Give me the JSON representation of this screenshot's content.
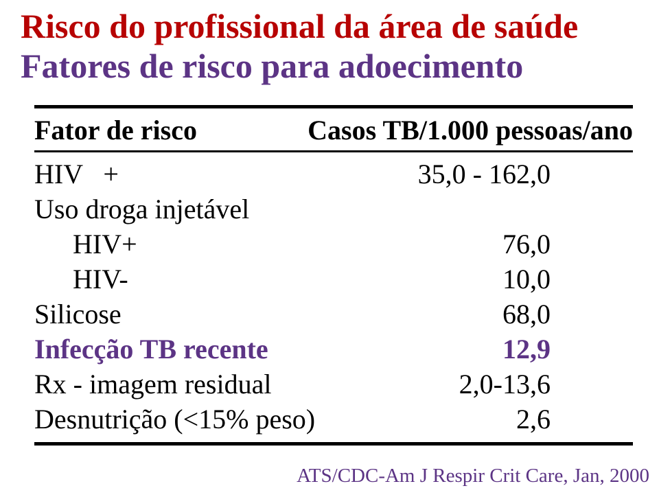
{
  "colors": {
    "heading": "#b70303",
    "subheading": "#5c3485",
    "body": "#000000",
    "highlight": "#5c3485",
    "citation": "#5c3485",
    "background": "#ffffff",
    "rule": "#000000"
  },
  "typography": {
    "family": "Times New Roman, serif",
    "title_fontsize": 50,
    "body_fontsize": 40,
    "citation_fontsize": 29,
    "title_weight": "bold",
    "header_weight": "bold"
  },
  "title": {
    "line1": "Risco do profissional da área de saúde",
    "line2": "Fatores de risco para adoecimento"
  },
  "table": {
    "header": {
      "factor": "Fator de risco",
      "cases": "Casos TB/1.000 pessoas/ano"
    },
    "rows": {
      "hiv_plus_label": "HIV   +",
      "hiv_plus_value": "35,0 - 162,0",
      "drug_label": "Uso droga injetável",
      "drug_hiv_plus_label": "HIV+",
      "drug_hiv_plus_value": "76,0",
      "drug_hiv_minus_label": "HIV-",
      "drug_hiv_minus_value": "10,0",
      "silicose_label": "Silicose",
      "silicose_value": "68,0",
      "infeccao_label": "Infecção TB recente",
      "infeccao_value": "12,9",
      "rx_label": "Rx - imagem residual",
      "rx_value": "2,0-13,6",
      "desnutricao_label": "Desnutrição (<15% peso)",
      "desnutricao_value": "2,6"
    }
  },
  "citation": "ATS/CDC-Am J Respir Crit Care, Jan, 2000"
}
